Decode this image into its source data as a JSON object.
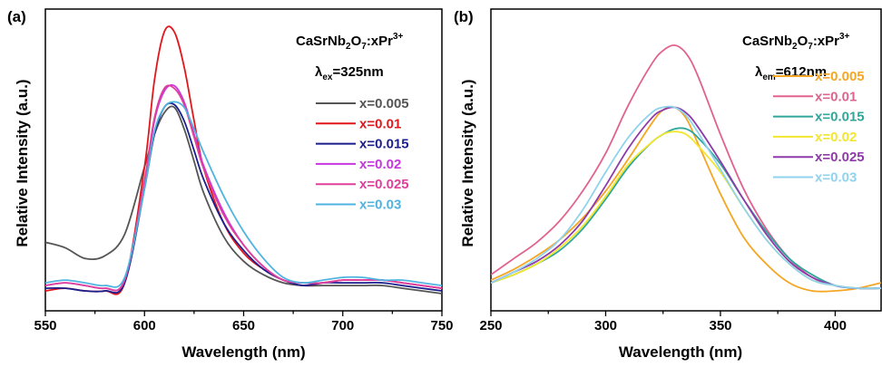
{
  "chart_data": [
    {
      "type": "line",
      "panel_label": "(a)",
      "xlabel": "Wavelength (nm)",
      "ylabel": "Relative Intensity (a.u.)",
      "xlim": [
        550,
        750
      ],
      "x_ticks": [
        "550",
        "600",
        "650",
        "700",
        "750"
      ],
      "compound": {
        "base": "CaSrNb",
        "sub": "2",
        "mid": "O",
        "sub2": "7",
        "tail": ":xPr",
        "sup": "3+"
      },
      "condition": {
        "symbol": "λ",
        "sub": "ex",
        "value": "=325nm"
      },
      "legend_position": "right",
      "series": [
        {
          "name": "x=0.005",
          "color": "#555555",
          "x": [
            550,
            560,
            570,
            580,
            590,
            600,
            605,
            610,
            615,
            620,
            625,
            630,
            640,
            650,
            660,
            670,
            680,
            690,
            700,
            710,
            720,
            730,
            740,
            750
          ],
          "y": [
            0.2,
            0.18,
            0.14,
            0.15,
            0.23,
            0.48,
            0.6,
            0.68,
            0.7,
            0.62,
            0.5,
            0.38,
            0.22,
            0.13,
            0.08,
            0.05,
            0.04,
            0.04,
            0.04,
            0.04,
            0.04,
            0.03,
            0.02,
            0.01
          ]
        },
        {
          "name": "x=0.01",
          "color": "#e2171c",
          "x": [
            550,
            560,
            570,
            580,
            590,
            600,
            605,
            610,
            615,
            620,
            625,
            630,
            640,
            650,
            660,
            670,
            680,
            690,
            700,
            710,
            720,
            730,
            740,
            750
          ],
          "y": [
            0.02,
            0.03,
            0.02,
            0.02,
            0.05,
            0.48,
            0.8,
            0.98,
            0.98,
            0.85,
            0.65,
            0.47,
            0.27,
            0.16,
            0.1,
            0.06,
            0.04,
            0.05,
            0.06,
            0.06,
            0.06,
            0.05,
            0.04,
            0.03
          ]
        },
        {
          "name": "x=0.015",
          "color": "#1b1f8e",
          "x": [
            550,
            560,
            570,
            580,
            590,
            600,
            605,
            610,
            615,
            620,
            625,
            630,
            640,
            650,
            660,
            670,
            680,
            690,
            700,
            710,
            720,
            730,
            740,
            750
          ],
          "y": [
            0.03,
            0.03,
            0.02,
            0.02,
            0.05,
            0.4,
            0.6,
            0.7,
            0.71,
            0.65,
            0.54,
            0.43,
            0.27,
            0.17,
            0.1,
            0.06,
            0.04,
            0.05,
            0.05,
            0.05,
            0.05,
            0.04,
            0.03,
            0.02
          ]
        },
        {
          "name": "x=0.02",
          "color": "#c635e0",
          "x": [
            550,
            560,
            570,
            580,
            590,
            600,
            605,
            610,
            615,
            620,
            625,
            630,
            640,
            650,
            660,
            670,
            680,
            690,
            700,
            710,
            720,
            730,
            740,
            750
          ],
          "y": [
            0.04,
            0.05,
            0.04,
            0.03,
            0.06,
            0.42,
            0.65,
            0.76,
            0.78,
            0.72,
            0.6,
            0.48,
            0.31,
            0.19,
            0.11,
            0.06,
            0.05,
            0.05,
            0.06,
            0.06,
            0.06,
            0.05,
            0.04,
            0.03
          ]
        },
        {
          "name": "x=0.025",
          "color": "#e0409a",
          "x": [
            550,
            560,
            570,
            580,
            590,
            600,
            605,
            610,
            615,
            620,
            625,
            630,
            640,
            650,
            660,
            670,
            680,
            690,
            700,
            710,
            720,
            730,
            740,
            750
          ],
          "y": [
            0.04,
            0.05,
            0.04,
            0.03,
            0.06,
            0.43,
            0.66,
            0.77,
            0.77,
            0.71,
            0.59,
            0.47,
            0.3,
            0.19,
            0.11,
            0.06,
            0.05,
            0.05,
            0.06,
            0.06,
            0.06,
            0.05,
            0.04,
            0.03
          ]
        },
        {
          "name": "x=0.03",
          "color": "#4fb3e0",
          "x": [
            550,
            560,
            570,
            580,
            590,
            600,
            605,
            610,
            615,
            620,
            625,
            630,
            640,
            650,
            660,
            670,
            680,
            690,
            700,
            710,
            720,
            730,
            740,
            750
          ],
          "y": [
            0.05,
            0.06,
            0.05,
            0.04,
            0.07,
            0.4,
            0.61,
            0.7,
            0.72,
            0.7,
            0.62,
            0.53,
            0.37,
            0.24,
            0.14,
            0.07,
            0.05,
            0.06,
            0.07,
            0.07,
            0.06,
            0.06,
            0.05,
            0.04
          ]
        }
      ]
    },
    {
      "type": "line",
      "panel_label": "(b)",
      "xlabel": "Wavelength (nm)",
      "ylabel": "Relative Intensity (a.u.)",
      "xlim": [
        250,
        420
      ],
      "x_ticks": [
        "250",
        "300",
        "350",
        "400"
      ],
      "compound": {
        "base": "CaSrNb",
        "sub": "2",
        "mid": "O",
        "sub2": "7",
        "tail": ":xPr",
        "sup": "3+"
      },
      "condition": {
        "symbol": "λ",
        "sub": "em",
        "value": "=612nm"
      },
      "legend_position": "right",
      "series": [
        {
          "name": "x=0.005",
          "color": "#f5a623",
          "x": [
            250,
            260,
            270,
            280,
            290,
            300,
            310,
            320,
            325,
            330,
            335,
            340,
            350,
            360,
            370,
            380,
            390,
            400,
            410,
            420
          ],
          "y": [
            0.06,
            0.1,
            0.15,
            0.21,
            0.29,
            0.39,
            0.51,
            0.64,
            0.69,
            0.7,
            0.66,
            0.57,
            0.38,
            0.22,
            0.12,
            0.05,
            0.02,
            0.02,
            0.03,
            0.05
          ]
        },
        {
          "name": "x=0.01",
          "color": "#e0638f",
          "x": [
            250,
            260,
            270,
            280,
            290,
            300,
            310,
            320,
            325,
            330,
            335,
            340,
            350,
            360,
            370,
            380,
            390,
            400,
            410,
            420
          ],
          "y": [
            0.08,
            0.14,
            0.2,
            0.28,
            0.39,
            0.53,
            0.71,
            0.86,
            0.91,
            0.93,
            0.9,
            0.82,
            0.6,
            0.4,
            0.25,
            0.14,
            0.07,
            0.04,
            0.03,
            0.03
          ]
        },
        {
          "name": "x=0.015",
          "color": "#2fa79b",
          "x": [
            250,
            260,
            270,
            280,
            290,
            300,
            310,
            320,
            325,
            330,
            335,
            340,
            350,
            360,
            370,
            380,
            390,
            400,
            410,
            420
          ],
          "y": [
            0.05,
            0.08,
            0.12,
            0.17,
            0.25,
            0.36,
            0.48,
            0.57,
            0.6,
            0.62,
            0.62,
            0.59,
            0.49,
            0.36,
            0.24,
            0.14,
            0.08,
            0.04,
            0.03,
            0.03
          ]
        },
        {
          "name": "x=0.02",
          "color": "#f2e62e",
          "x": [
            250,
            260,
            270,
            280,
            290,
            300,
            310,
            320,
            325,
            330,
            335,
            340,
            350,
            360,
            370,
            380,
            390,
            400,
            410,
            420
          ],
          "y": [
            0.05,
            0.08,
            0.12,
            0.18,
            0.26,
            0.37,
            0.49,
            0.57,
            0.6,
            0.61,
            0.6,
            0.56,
            0.46,
            0.33,
            0.21,
            0.12,
            0.06,
            0.04,
            0.03,
            0.03
          ]
        },
        {
          "name": "x=0.025",
          "color": "#8e3ba9",
          "x": [
            250,
            260,
            270,
            280,
            290,
            300,
            310,
            320,
            325,
            330,
            335,
            340,
            350,
            360,
            370,
            380,
            390,
            400,
            410,
            420
          ],
          "y": [
            0.05,
            0.09,
            0.13,
            0.19,
            0.28,
            0.41,
            0.55,
            0.66,
            0.69,
            0.7,
            0.68,
            0.63,
            0.5,
            0.36,
            0.23,
            0.13,
            0.07,
            0.04,
            0.03,
            0.03
          ]
        },
        {
          "name": "x=0.03",
          "color": "#8fd3ef",
          "x": [
            250,
            260,
            270,
            280,
            290,
            300,
            310,
            320,
            325,
            330,
            335,
            340,
            350,
            360,
            370,
            380,
            390,
            400,
            410,
            420
          ],
          "y": [
            0.05,
            0.09,
            0.14,
            0.21,
            0.32,
            0.46,
            0.59,
            0.68,
            0.7,
            0.7,
            0.67,
            0.61,
            0.47,
            0.33,
            0.21,
            0.12,
            0.06,
            0.04,
            0.03,
            0.03
          ]
        }
      ]
    }
  ]
}
